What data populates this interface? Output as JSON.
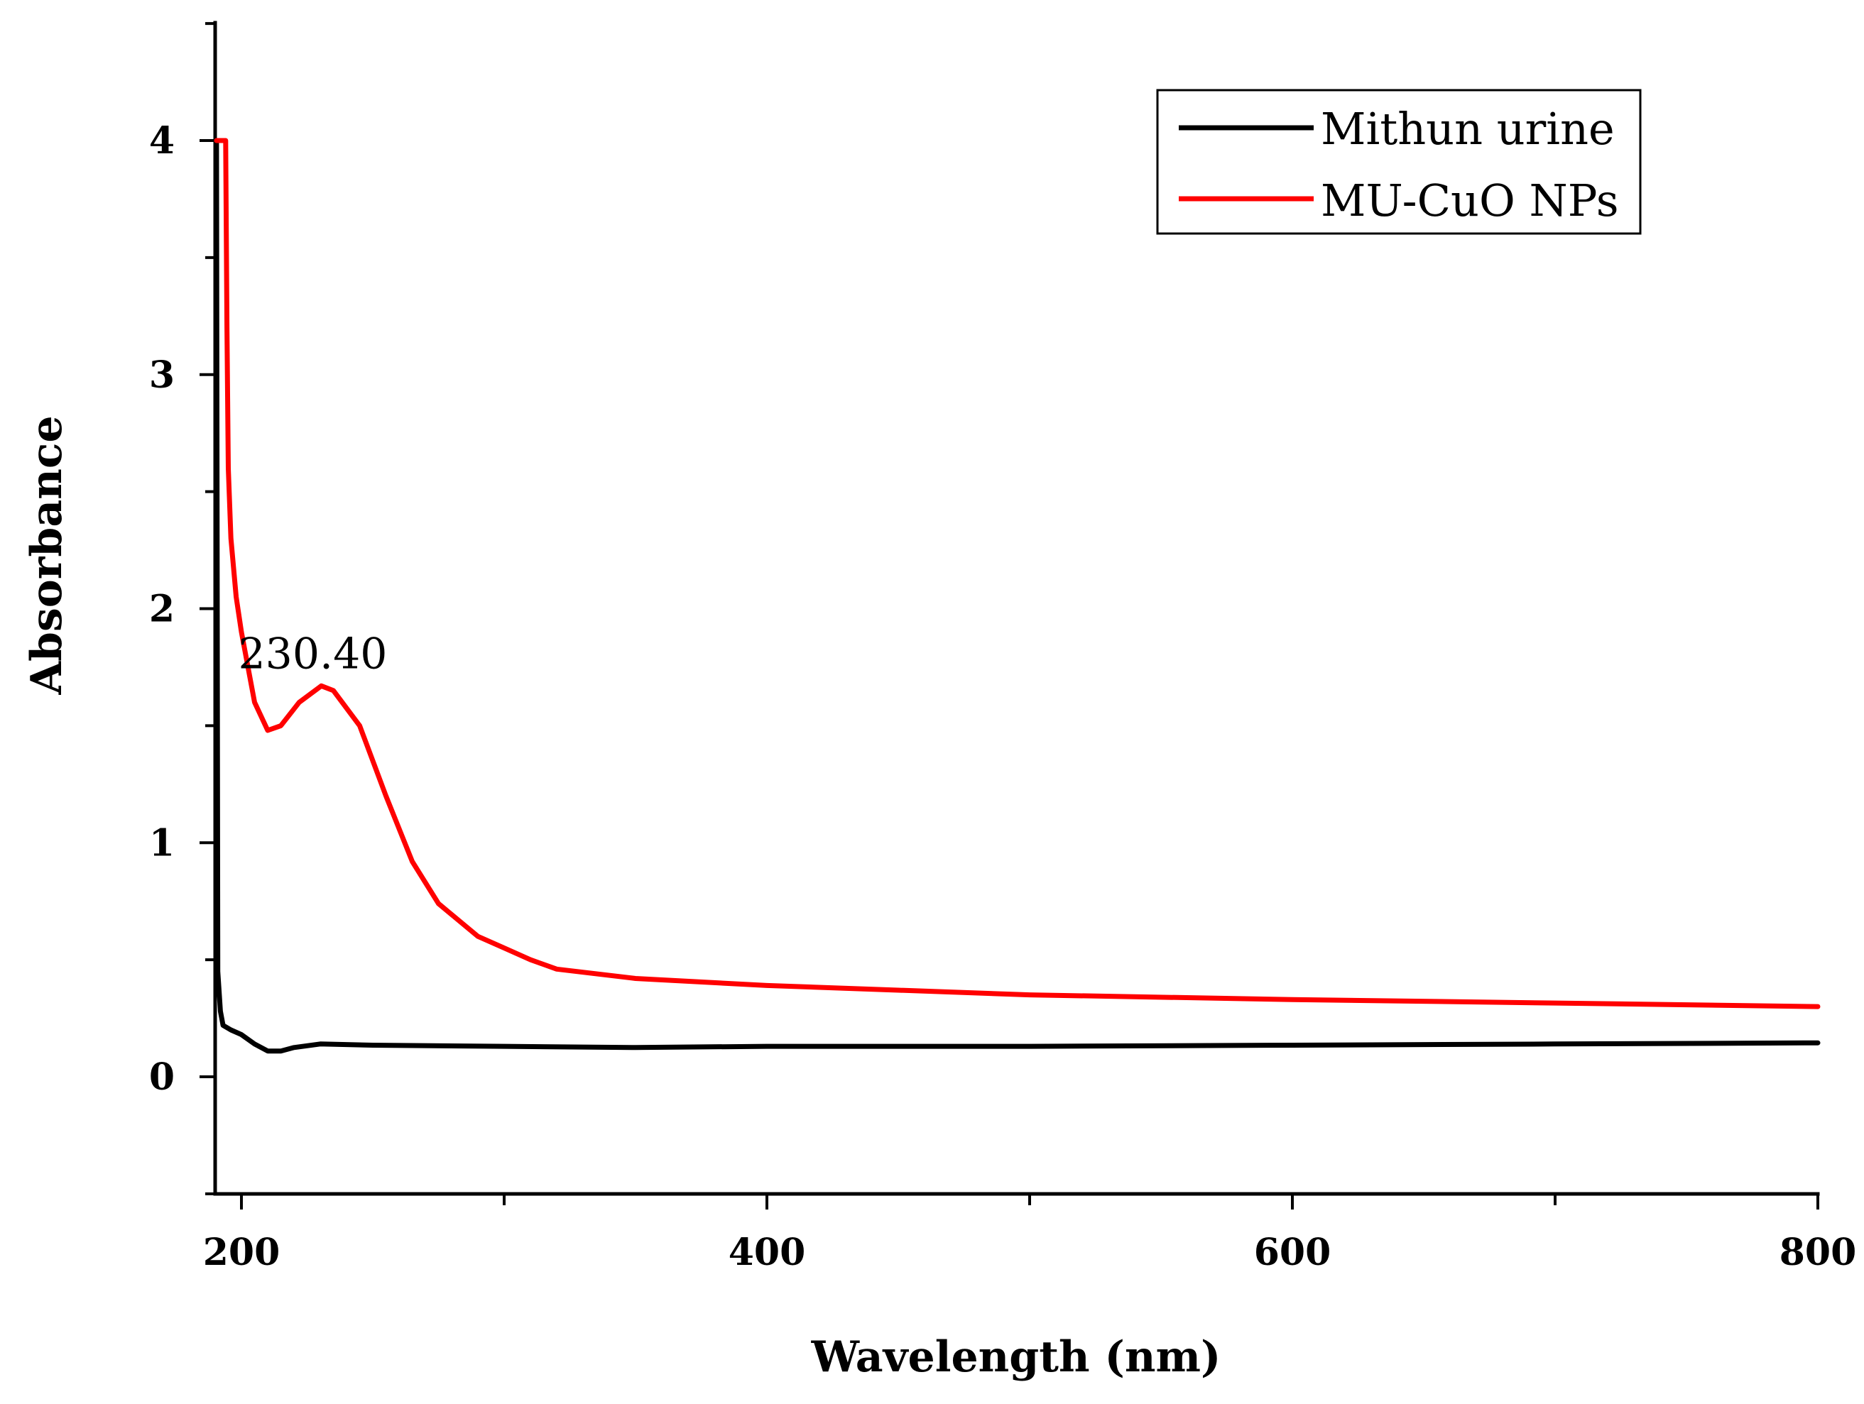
{
  "chart_data": {
    "type": "line",
    "title": "",
    "xlabel": "Wavelength (nm)",
    "ylabel": "Absorbance",
    "xlim": [
      190,
      800
    ],
    "ylim": [
      -0.5,
      4.5
    ],
    "xticks_major": [
      200,
      400,
      600,
      800
    ],
    "xticks_minor": [
      300,
      500,
      700
    ],
    "yticks_major": [
      0,
      1,
      2,
      3,
      4
    ],
    "yticks_minor": [
      -0.5,
      0.5,
      1.5,
      2.5,
      3.5,
      4.5
    ],
    "grid": false,
    "legend_position": "top-right",
    "series": [
      {
        "name": "Mithun urine",
        "color": "#000000",
        "x": [
          190.5,
          191,
          192,
          193,
          196,
          200,
          205,
          210,
          215,
          220,
          230,
          250,
          300,
          350,
          400,
          500,
          600,
          700,
          800
        ],
        "y": [
          4.0,
          0.45,
          0.28,
          0.22,
          0.2,
          0.18,
          0.14,
          0.11,
          0.11,
          0.125,
          0.14,
          0.135,
          0.13,
          0.125,
          0.13,
          0.13,
          0.135,
          0.14,
          0.145
        ]
      },
      {
        "name": "MU-CuO NPs",
        "color": "#ff0000",
        "x": [
          190.5,
          194,
          194.5,
          195,
          196,
          198,
          200,
          205,
          210,
          215,
          222,
          230.4,
          235,
          245,
          255,
          265,
          275,
          290,
          300,
          310,
          320,
          350,
          400,
          450,
          500,
          600,
          700,
          800
        ],
        "y": [
          4.0,
          4.0,
          3.2,
          2.6,
          2.3,
          2.05,
          1.9,
          1.6,
          1.48,
          1.5,
          1.6,
          1.67,
          1.65,
          1.5,
          1.2,
          0.92,
          0.74,
          0.6,
          0.55,
          0.5,
          0.46,
          0.42,
          0.39,
          0.37,
          0.35,
          0.33,
          0.315,
          0.3
        ]
      }
    ],
    "annotations": [
      {
        "text": "230.40",
        "x": 230.4,
        "y": 1.67
      }
    ]
  }
}
